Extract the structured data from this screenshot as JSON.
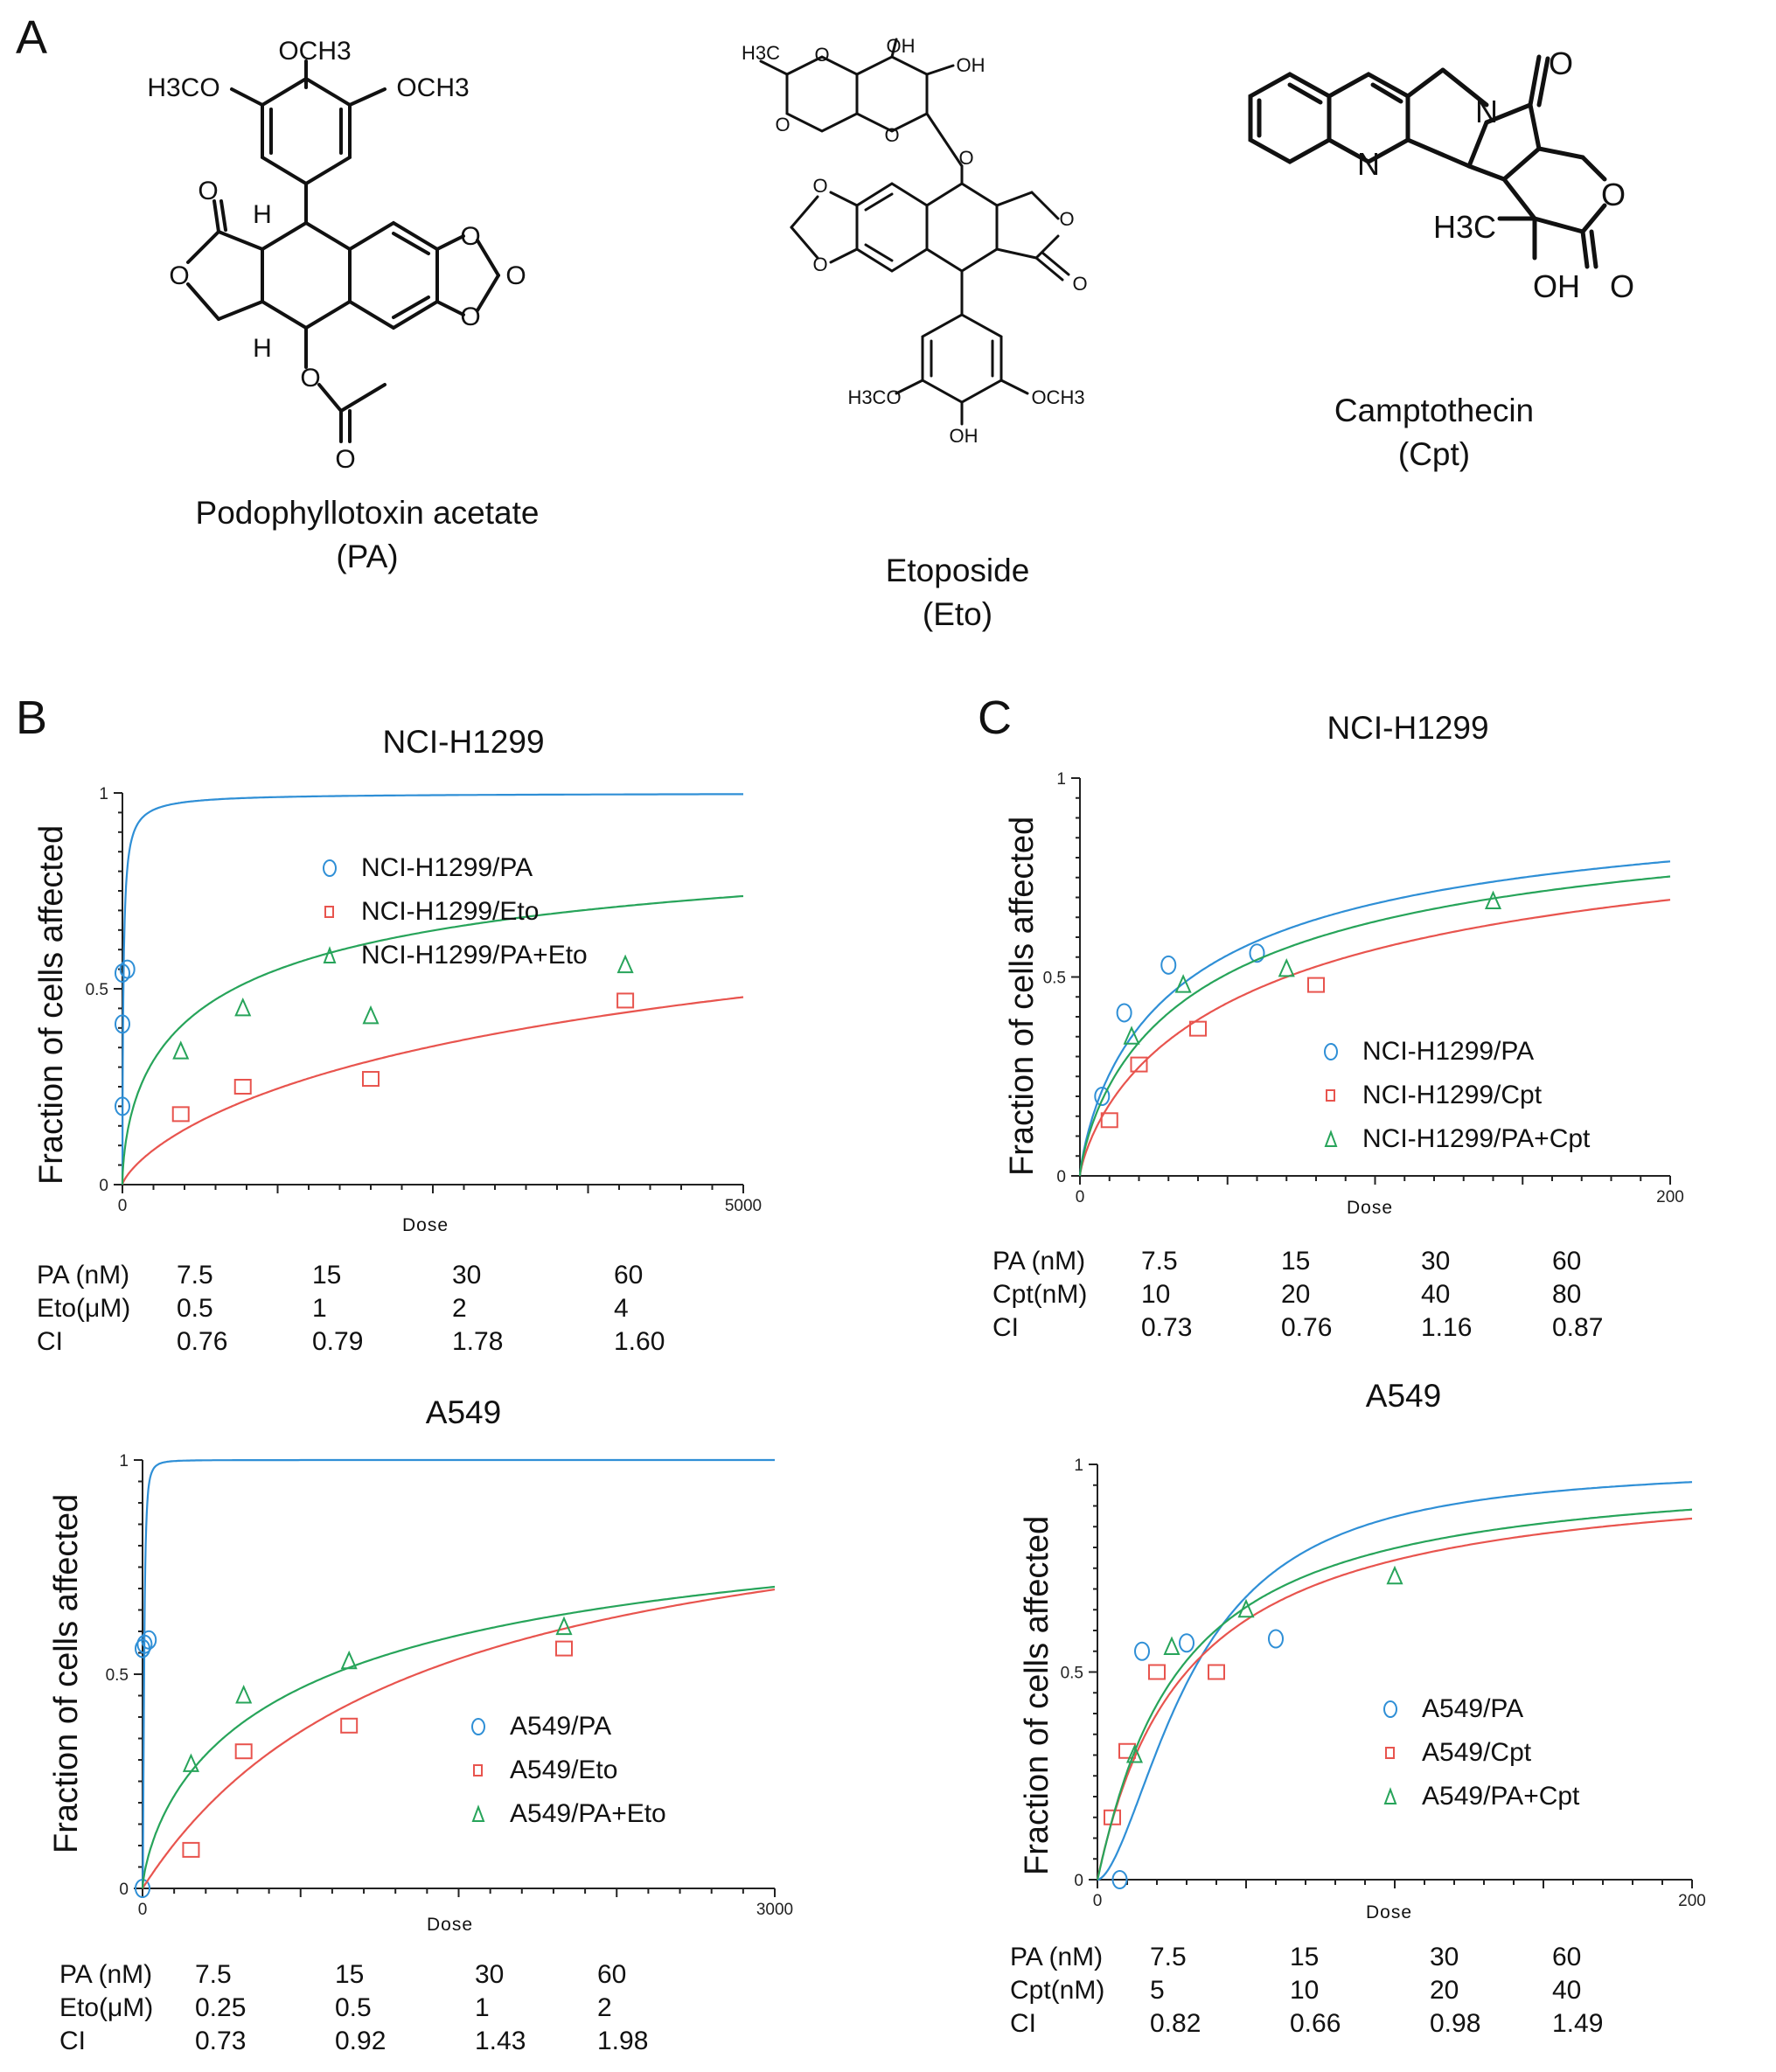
{
  "panels": {
    "a": "A",
    "b": "B",
    "c": "C"
  },
  "molecules": [
    {
      "name": "Podophyllotoxin acetate",
      "abbr": "(PA)",
      "labels": {
        "top": "OCH3",
        "left": "H3CO",
        "right": "OCH3",
        "h1": "H",
        "h2": "H",
        "o1": "O",
        "o2": "O",
        "o3": "O",
        "o4": "O",
        "o5": "O",
        "o6": "O",
        "o7": "O"
      }
    },
    {
      "name": "Etoposide",
      "abbr": "(Eto)",
      "labels": {
        "me": "H3C",
        "oh1": "OH",
        "oh2": "OH",
        "oh3": "OH",
        "ome1": "H3CO",
        "ome2": "OCH3",
        "o1": "O",
        "o2": "O",
        "o3": "O",
        "o4": "O",
        "o5": "O",
        "o6": "O",
        "o7": "O",
        "o8": "O"
      }
    },
    {
      "name": "Camptothecin",
      "abbr": "(Cpt)",
      "labels": {
        "n1": "N",
        "n2": "N",
        "o1": "O",
        "o2": "O",
        "o3": "O",
        "me": "H3C",
        "oh": "OH"
      }
    }
  ],
  "chart_data": [
    {
      "id": "b_h1299",
      "type": "scatter",
      "title": "NCI-H1299",
      "xlabel": "Dose",
      "ylabel": "Fraction of cells affected",
      "xlim": [
        0,
        5000
      ],
      "ylim": [
        0,
        1
      ],
      "x_ticks": [
        "0",
        "5000"
      ],
      "y_ticks": [
        "0",
        "0.5",
        "1"
      ],
      "series": [
        {
          "name": "NCI-H1299/PA",
          "color": "#2f8fd6",
          "marker": "circle",
          "points": [
            [
              0,
              0.2
            ],
            [
              0,
              0.41
            ],
            [
              0,
              0.54
            ],
            [
              40,
              0.55
            ]
          ],
          "curve": {
            "dm": 8,
            "m": 0.9
          }
        },
        {
          "name": "NCI-H1299/Eto",
          "color": "#e8544e",
          "marker": "square",
          "points": [
            [
              470,
              0.18
            ],
            [
              970,
              0.25
            ],
            [
              2000,
              0.27
            ],
            [
              4050,
              0.47
            ]
          ],
          "curve": {
            "dm": 5600,
            "m": 0.75
          }
        },
        {
          "name": "NCI-H1299/PA+Eto",
          "color": "#27a45a",
          "marker": "triangle",
          "points": [
            [
              470,
              0.34
            ],
            [
              970,
              0.45
            ],
            [
              2000,
              0.43
            ],
            [
              4050,
              0.56
            ]
          ],
          "curve": {
            "dm": 900,
            "m": 0.6
          }
        }
      ],
      "ci_table": {
        "rows": [
          {
            "label": "PA (nM)",
            "values": [
              "7.5",
              "15",
              "30",
              "60"
            ]
          },
          {
            "label": "Eto(μM)",
            "values": [
              "0.5",
              "1",
              "2",
              "4"
            ]
          },
          {
            "label": "CI",
            "values": [
              "0.76",
              "0.79",
              "1.78",
              "1.60"
            ]
          }
        ]
      }
    },
    {
      "id": "b_a549",
      "type": "scatter",
      "title": "A549",
      "xlabel": "Dose",
      "ylabel": "Fraction of cells affected",
      "xlim": [
        0,
        3000
      ],
      "ylim": [
        0,
        1
      ],
      "x_ticks": [
        "0",
        "3000"
      ],
      "y_ticks": [
        "0",
        "0.5",
        "1"
      ],
      "series": [
        {
          "name": "A549/PA",
          "color": "#2f8fd6",
          "marker": "circle",
          "points": [
            [
              0,
              0.0
            ],
            [
              0,
              0.56
            ],
            [
              10,
              0.57
            ],
            [
              30,
              0.58
            ]
          ],
          "curve": {
            "dm": 7.5,
            "m": 2.0
          }
        },
        {
          "name": "A549/Eto",
          "color": "#e8544e",
          "marker": "square",
          "points": [
            [
              230,
              0.09
            ],
            [
              480,
              0.32
            ],
            [
              980,
              0.38
            ],
            [
              2000,
              0.56
            ]
          ],
          "curve": {
            "dm": 1300,
            "m": 1.0
          }
        },
        {
          "name": "A549/PA+Eto",
          "color": "#27a45a",
          "marker": "triangle",
          "points": [
            [
              230,
              0.29
            ],
            [
              480,
              0.45
            ],
            [
              980,
              0.53
            ],
            [
              2000,
              0.61
            ]
          ],
          "curve": {
            "dm": 900,
            "m": 0.72
          }
        }
      ],
      "ci_table": {
        "rows": [
          {
            "label": "PA (nM)",
            "values": [
              "7.5",
              "15",
              "30",
              "60"
            ]
          },
          {
            "label": "Eto(μM)",
            "values": [
              "0.25",
              "0.5",
              "1",
              "2"
            ]
          },
          {
            "label": "CI",
            "values": [
              "0.73",
              "0.92",
              "1.43",
              "1.98"
            ]
          }
        ]
      }
    },
    {
      "id": "c_h1299",
      "type": "scatter",
      "title": "NCI-H1299",
      "xlabel": "Dose",
      "ylabel": "Fraction of cells affected",
      "xlim": [
        0,
        200
      ],
      "ylim": [
        0,
        1
      ],
      "x_ticks": [
        "0",
        "200"
      ],
      "y_ticks": [
        "0",
        "0.5",
        "1"
      ],
      "series": [
        {
          "name": "NCI-H1299/PA",
          "color": "#2f8fd6",
          "marker": "circle",
          "points": [
            [
              7.5,
              0.2
            ],
            [
              15,
              0.41
            ],
            [
              30,
              0.53
            ],
            [
              60,
              0.56
            ]
          ],
          "curve": {
            "dm": 38,
            "m": 0.8
          }
        },
        {
          "name": "NCI-H1299/Cpt",
          "color": "#e8544e",
          "marker": "square",
          "points": [
            [
              10,
              0.14
            ],
            [
              20,
              0.28
            ],
            [
              40,
              0.37
            ],
            [
              80,
              0.48
            ]
          ],
          "curve": {
            "dm": 70,
            "m": 0.78
          }
        },
        {
          "name": "NCI-H1299/PA+Cpt",
          "color": "#27a45a",
          "marker": "triangle",
          "points": [
            [
              17.5,
              0.35
            ],
            [
              35,
              0.48
            ],
            [
              70,
              0.52
            ],
            [
              140,
              0.69
            ]
          ],
          "curve": {
            "dm": 48,
            "m": 0.78
          }
        }
      ],
      "ci_table": {
        "rows": [
          {
            "label": "PA (nM)",
            "values": [
              "7.5",
              "15",
              "30",
              "60"
            ]
          },
          {
            "label": "Cpt(nM)",
            "values": [
              "10",
              "20",
              "40",
              "80"
            ]
          },
          {
            "label": "CI",
            "values": [
              "0.73",
              "0.76",
              "1.16",
              "0.87"
            ]
          }
        ]
      }
    },
    {
      "id": "c_a549",
      "type": "scatter",
      "title": "A549",
      "xlabel": "Dose",
      "ylabel": "Fraction of cells affected",
      "xlim": [
        0,
        200
      ],
      "ylim": [
        0,
        1
      ],
      "x_ticks": [
        "0",
        "200"
      ],
      "y_ticks": [
        "0",
        "0.5",
        "1"
      ],
      "series": [
        {
          "name": "A549/PA",
          "color": "#2f8fd6",
          "marker": "circle",
          "points": [
            [
              7.5,
              0.0
            ],
            [
              15,
              0.55
            ],
            [
              30,
              0.57
            ],
            [
              60,
              0.58
            ]
          ],
          "curve": {
            "dm": 32,
            "m": 1.7
          }
        },
        {
          "name": "A549/Cpt",
          "color": "#e8544e",
          "marker": "square",
          "points": [
            [
              5,
              0.15
            ],
            [
              10,
              0.31
            ],
            [
              20,
              0.5
            ],
            [
              40,
              0.5
            ]
          ],
          "curve": {
            "dm": 30,
            "m": 1.0
          }
        },
        {
          "name": "A549/PA+Cpt",
          "color": "#27a45a",
          "marker": "triangle",
          "points": [
            [
              12.5,
              0.3
            ],
            [
              25,
              0.56
            ],
            [
              50,
              0.65
            ],
            [
              100,
              0.73
            ]
          ],
          "curve": {
            "dm": 27,
            "m": 1.05
          }
        }
      ],
      "ci_table": {
        "rows": [
          {
            "label": "PA (nM)",
            "values": [
              "7.5",
              "15",
              "30",
              "60"
            ]
          },
          {
            "label": "Cpt(nM)",
            "values": [
              "5",
              "10",
              "20",
              "40"
            ]
          },
          {
            "label": "CI",
            "values": [
              "0.82",
              "0.66",
              "0.98",
              "1.49"
            ]
          }
        ]
      }
    }
  ]
}
